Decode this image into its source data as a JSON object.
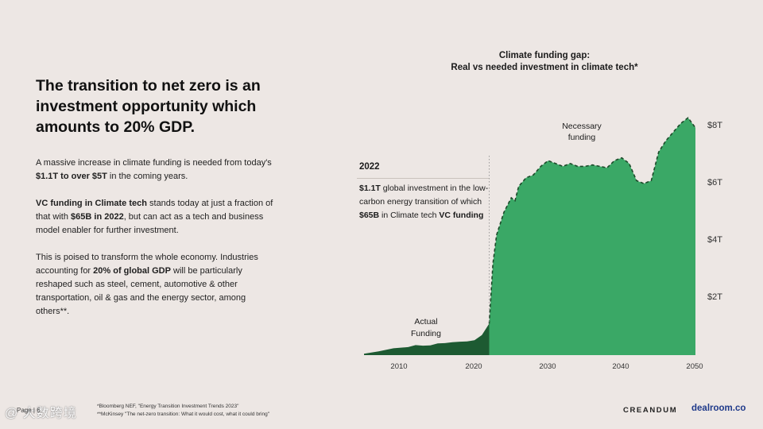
{
  "headline": "The transition to net zero is an investment opportunity which amounts to 20% GDP.",
  "body": {
    "p1": {
      "a": "A massive increase in climate funding is needed from today's ",
      "b": "$1.1T to over $5T",
      "c": " in the coming years."
    },
    "p2": {
      "a": "VC funding in Climate tech",
      "b": " stands today at just a fraction of that with ",
      "c": "$65B in 2022",
      "d": ", but can act as a tech and business model enabler for further investment."
    },
    "p3": {
      "a": "This is poised to transform the whole economy. Industries accounting for ",
      "b": "20% of global GDP",
      "c": " will be particularly reshaped such as steel, cement, automotive & other transportation, oil & gas and the energy sector, among others**."
    }
  },
  "chart_data": {
    "type": "area",
    "title": "Climate funding gap:",
    "subtitle": "Real vs needed investment in climate tech*",
    "xlabel": "",
    "ylabel": "",
    "xlim": [
      2005,
      2050
    ],
    "ylim": [
      0,
      8.8
    ],
    "x_ticks": [
      "2010",
      "2020",
      "2030",
      "2040",
      "2050"
    ],
    "y_ticks": [
      "$2T",
      "$4T",
      "$6T",
      "$8T"
    ],
    "y_tick_values": [
      2,
      4,
      6,
      8
    ],
    "y_axis_side": "right",
    "series": [
      {
        "name": "Actual Funding",
        "color": "#1d5a32",
        "x": [
          2005,
          2007,
          2009,
          2011,
          2012,
          2013,
          2014,
          2015,
          2016,
          2017,
          2018,
          2019,
          2020,
          2021,
          2022
        ],
        "values": [
          0.05,
          0.13,
          0.24,
          0.28,
          0.35,
          0.33,
          0.34,
          0.41,
          0.42,
          0.45,
          0.47,
          0.48,
          0.52,
          0.7,
          1.1
        ]
      },
      {
        "name": "Necessary funding",
        "color": "#3aa866",
        "x": [
          2022,
          2022.5,
          2023,
          2024,
          2025,
          2025.5,
          2026,
          2027,
          2028,
          2029,
          2030,
          2031,
          2032,
          2033,
          2034,
          2035,
          2036,
          2037,
          2038,
          2039,
          2040,
          2041,
          2042,
          2043,
          2044,
          2045,
          2046,
          2047,
          2048,
          2049,
          2050
        ],
        "values": [
          1.1,
          3.2,
          4.2,
          5.0,
          5.5,
          5.4,
          5.9,
          6.2,
          6.3,
          6.6,
          6.8,
          6.7,
          6.6,
          6.7,
          6.6,
          6.6,
          6.65,
          6.6,
          6.55,
          6.8,
          6.9,
          6.7,
          6.1,
          6.0,
          6.1,
          7.1,
          7.5,
          7.8,
          8.1,
          8.3,
          7.95
        ]
      }
    ],
    "annotation": {
      "year": "2022",
      "line1": "$1.1T",
      "line2": " global investment in the low-carbon energy transition of which ",
      "line3": "$65B",
      "line4": " in Climate tech ",
      "line5": "VC funding"
    },
    "label_actual_1": "Actual",
    "label_actual_2": "Funding",
    "label_necessary_1": "Necessary",
    "label_necessary_2": "funding",
    "legend": "none"
  },
  "footer": {
    "page": "Page | 6",
    "note1": "*Bloomberg NEF, \"Energy Transition Investment Trends 2023\"",
    "note2": "**McKinsey \"The net-zero transition: What it would cost, what it could bring\"",
    "brand1": "CREANDUM",
    "brand2": "dealroom.co",
    "watermark": "@ 大数跨境"
  },
  "colors": {
    "background": "#ede7e4",
    "actual": "#1d5a32",
    "necessary": "#3aa866",
    "dash": "#1d4a2a"
  }
}
